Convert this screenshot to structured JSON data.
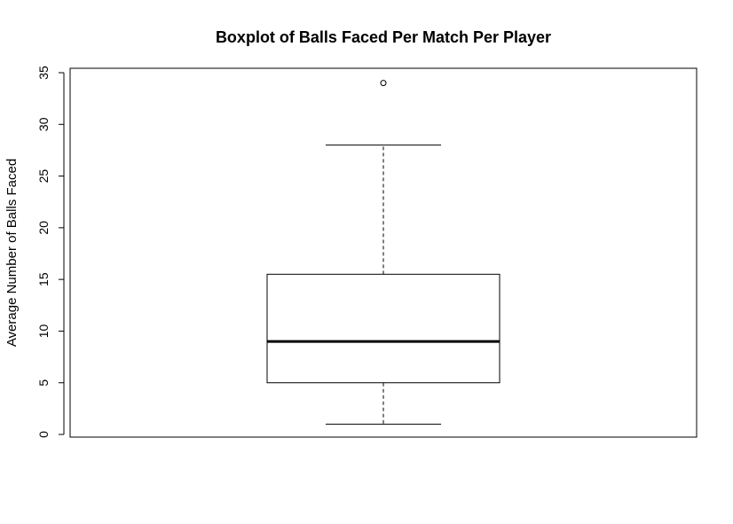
{
  "chart_data": {
    "type": "box",
    "title": "Boxplot of Balls Faced Per Match Per Player",
    "xlabel": "",
    "ylabel": "Average Number of Balls Faced",
    "ylim": [
      0,
      35
    ],
    "y_ticks": [
      0,
      5,
      10,
      15,
      20,
      25,
      30,
      35
    ],
    "y_tick_labels": [
      "0",
      "5",
      "10",
      "15",
      "20",
      "25",
      "30",
      "35"
    ],
    "grid": false,
    "legend": "none",
    "box": {
      "whisker_low": 1,
      "q1": 5,
      "median": 9,
      "q3": 15.5,
      "whisker_high": 28,
      "outliers": [
        34
      ]
    }
  }
}
